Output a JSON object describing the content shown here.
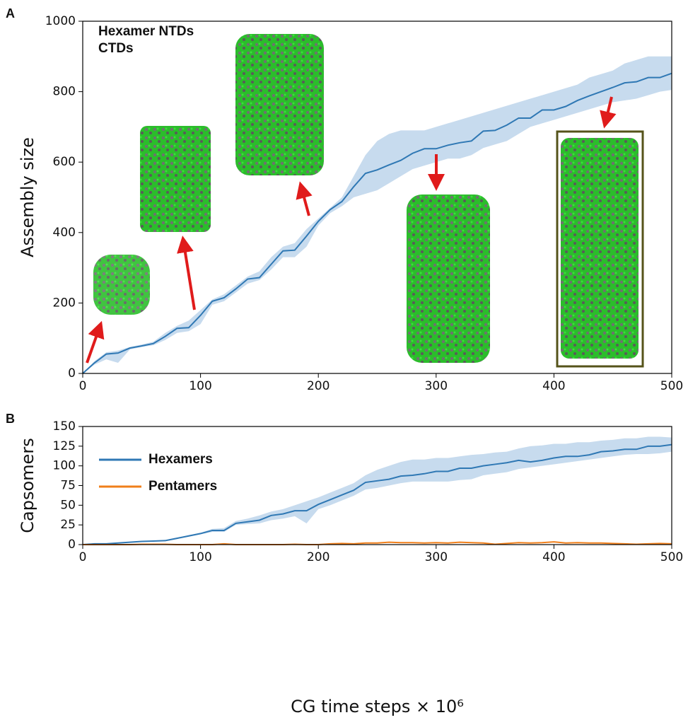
{
  "chart_data": [
    {
      "type": "line",
      "panel": "A",
      "ylabel": "Assembly size",
      "annotations": [
        {
          "text": "Hexamer NTDs",
          "color": "#1f9a1f"
        },
        {
          "text": "CTDs",
          "color": "#7a7a7a"
        }
      ],
      "x": [
        0,
        10,
        20,
        30,
        40,
        50,
        60,
        70,
        80,
        90,
        100,
        110,
        120,
        130,
        140,
        150,
        160,
        170,
        180,
        190,
        200,
        210,
        220,
        230,
        240,
        250,
        260,
        270,
        280,
        290,
        300,
        310,
        320,
        330,
        340,
        350,
        360,
        370,
        380,
        390,
        400,
        410,
        420,
        430,
        440,
        450,
        460,
        470,
        480,
        490,
        500
      ],
      "series": [
        {
          "color": "#2f78b4",
          "band_color": "#c7dbee",
          "values": [
            0,
            30,
            55,
            58,
            72,
            78,
            85,
            105,
            128,
            130,
            165,
            205,
            215,
            240,
            268,
            272,
            310,
            348,
            350,
            390,
            432,
            465,
            488,
            530,
            568,
            578,
            592,
            605,
            625,
            638,
            638,
            648,
            655,
            660,
            688,
            690,
            705,
            725,
            725,
            748,
            748,
            758,
            775,
            788,
            800,
            812,
            825,
            828,
            840,
            840,
            852
          ],
          "band_upper": [
            0,
            35,
            60,
            65,
            75,
            82,
            90,
            115,
            135,
            150,
            180,
            210,
            225,
            250,
            275,
            290,
            330,
            360,
            370,
            410,
            440,
            470,
            500,
            560,
            620,
            660,
            680,
            690,
            690,
            690,
            700,
            710,
            720,
            730,
            740,
            750,
            760,
            770,
            780,
            790,
            800,
            810,
            820,
            840,
            850,
            860,
            880,
            890,
            900,
            900,
            900
          ],
          "band_lower": [
            0,
            25,
            40,
            30,
            68,
            75,
            80,
            95,
            115,
            120,
            140,
            195,
            205,
            230,
            255,
            265,
            295,
            330,
            330,
            360,
            420,
            455,
            475,
            500,
            510,
            520,
            540,
            560,
            580,
            590,
            600,
            610,
            610,
            620,
            640,
            650,
            660,
            680,
            700,
            710,
            720,
            730,
            740,
            750,
            760,
            770,
            775,
            780,
            790,
            800,
            805
          ]
        }
      ],
      "xlim": [
        0,
        500
      ],
      "xticks": [
        0,
        100,
        200,
        300,
        400,
        500
      ],
      "ylim": [
        0,
        1000
      ],
      "yticks": [
        0,
        200,
        400,
        600,
        800,
        1000
      ]
    },
    {
      "type": "line",
      "panel": "B",
      "ylabel": "Capsomers",
      "xlabel": "CG time steps × 10⁶",
      "legend": "upper left",
      "x": [
        0,
        10,
        20,
        30,
        40,
        50,
        60,
        70,
        80,
        90,
        100,
        110,
        120,
        130,
        140,
        150,
        160,
        170,
        180,
        190,
        200,
        210,
        220,
        230,
        240,
        250,
        260,
        270,
        280,
        290,
        300,
        310,
        320,
        330,
        340,
        350,
        360,
        370,
        380,
        390,
        400,
        410,
        420,
        430,
        440,
        450,
        460,
        470,
        480,
        490,
        500
      ],
      "series": [
        {
          "name": "Hexamers",
          "color": "#2f78b4",
          "label_color": "#1a8a8a",
          "band_color": "#c7dbee",
          "values": [
            0,
            1,
            1,
            2,
            3,
            4,
            4.5,
            5,
            8,
            11,
            14,
            18,
            18,
            27,
            29,
            31,
            37,
            39,
            43,
            43,
            51,
            57,
            63,
            69,
            79,
            81,
            83,
            87,
            88,
            90,
            93,
            93,
            97,
            97,
            100,
            102,
            104,
            107,
            105,
            107,
            110,
            112,
            112,
            114,
            118,
            119,
            121,
            121,
            125,
            125,
            127
          ],
          "band_upper": [
            0,
            1,
            1.5,
            2.5,
            3.5,
            4.5,
            5,
            6,
            9,
            12,
            15,
            20,
            21,
            30,
            33,
            37,
            42,
            45,
            50,
            55,
            60,
            66,
            72,
            78,
            88,
            95,
            100,
            105,
            108,
            108,
            110,
            110,
            112,
            114,
            115,
            117,
            118,
            122,
            125,
            126,
            128,
            128,
            130,
            130,
            132,
            133,
            135,
            135,
            137,
            137,
            136
          ],
          "band_lower": [
            0,
            0.5,
            0.5,
            1.5,
            2.5,
            3.5,
            4,
            4,
            7,
            10,
            13,
            16,
            16,
            25,
            26,
            27,
            31,
            33,
            36,
            27,
            45,
            50,
            56,
            62,
            70,
            72,
            75,
            78,
            80,
            80,
            80,
            80,
            82,
            83,
            88,
            90,
            92,
            96,
            98,
            100,
            102,
            104,
            106,
            108,
            110,
            112,
            114,
            115,
            115,
            116,
            118
          ]
        },
        {
          "name": "Pentamers",
          "color": "#f07f1a",
          "label_color": "#ee7a1a",
          "values": [
            0,
            0,
            0,
            0,
            0,
            0.5,
            0.5,
            0.5,
            0,
            0,
            0,
            0,
            1,
            0,
            0,
            0,
            0,
            0,
            0.5,
            0,
            0,
            1,
            1.5,
            1,
            2,
            2,
            3,
            2.5,
            2.5,
            2,
            2.5,
            2,
            3,
            2.5,
            2,
            0.5,
            1.5,
            2.5,
            2,
            2.5,
            3.5,
            2,
            2.5,
            2,
            2,
            1.5,
            1,
            0.5,
            1,
            1.5,
            1
          ]
        }
      ],
      "xlim": [
        0,
        500
      ],
      "xticks": [
        0,
        100,
        200,
        300,
        400,
        500
      ],
      "ylim": [
        0,
        150
      ],
      "yticks": [
        0,
        25,
        50,
        75,
        100,
        125,
        150
      ]
    }
  ]
}
